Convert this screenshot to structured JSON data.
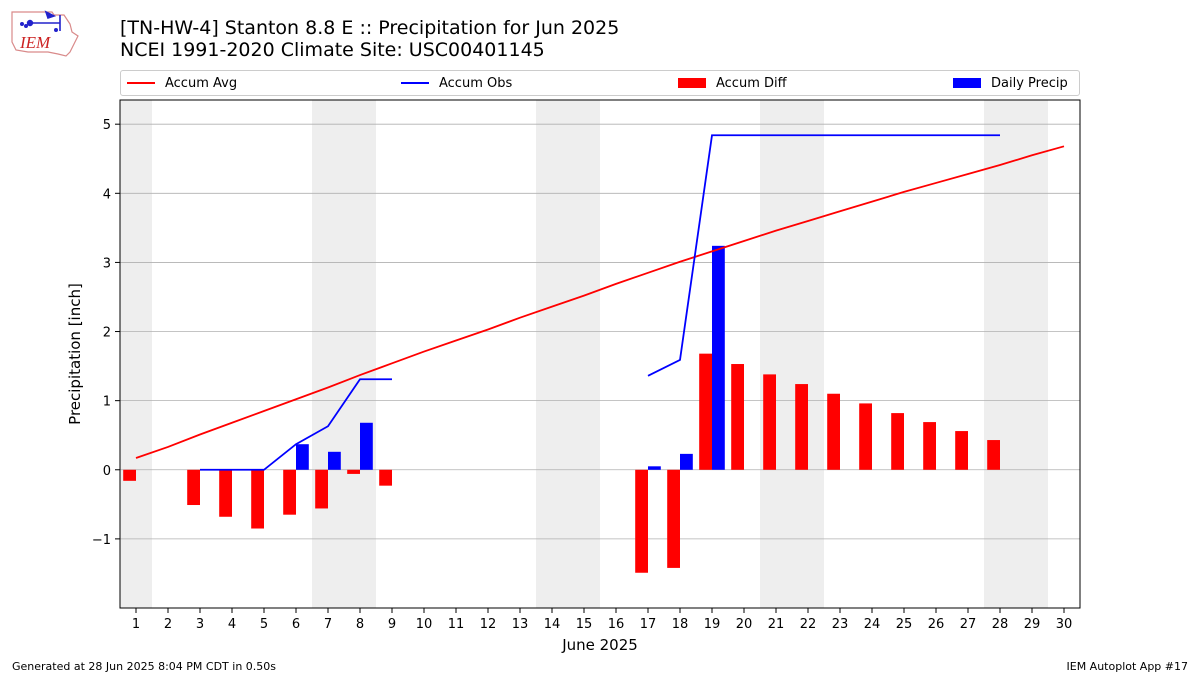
{
  "header": {
    "title_line1": "[TN-HW-4] Stanton 8.8 E :: Precipitation for Jun 2025",
    "title_line2": "NCEI 1991-2020 Climate Site: USC00401145",
    "logo_text": "IEM"
  },
  "footer": {
    "generated": "Generated at 28 Jun 2025 8:04 PM CDT in 0.50s",
    "app": "IEM Autoplot App #17"
  },
  "colors": {
    "avg": "#ff0000",
    "obs": "#0000ff",
    "diff": "#ff0000",
    "daily": "#0000ff",
    "weekend": "#eeeeee",
    "grid": "#b0b0b0"
  },
  "chart_data": {
    "type": "bar",
    "xlabel": "June 2025",
    "ylabel": "Precipitation [inch]",
    "xlim": [
      0.5,
      30.5
    ],
    "ylim": [
      -2.0,
      5.35
    ],
    "yticks": [
      -1,
      0,
      1,
      2,
      3,
      4,
      5
    ],
    "ytick_labels": [
      "−1",
      "0",
      "1",
      "2",
      "3",
      "4",
      "5"
    ],
    "grid": true,
    "legend_position": "top",
    "weekend_days": [
      1,
      7,
      8,
      14,
      15,
      21,
      22,
      28,
      29
    ],
    "days": [
      1,
      2,
      3,
      4,
      5,
      6,
      7,
      8,
      9,
      10,
      11,
      12,
      13,
      14,
      15,
      16,
      17,
      18,
      19,
      20,
      21,
      22,
      23,
      24,
      25,
      26,
      27,
      28,
      29,
      30
    ],
    "series": [
      {
        "name": "Accum Avg",
        "type": "line",
        "x": [
          1,
          2,
          3,
          4,
          5,
          6,
          7,
          8,
          9,
          10,
          11,
          12,
          13,
          14,
          15,
          16,
          17,
          18,
          19,
          20,
          21,
          22,
          23,
          24,
          25,
          26,
          27,
          28,
          29,
          30
        ],
        "values": [
          0.17,
          0.33,
          0.51,
          0.68,
          0.85,
          1.02,
          1.19,
          1.37,
          1.54,
          1.71,
          1.87,
          2.03,
          2.2,
          2.36,
          2.52,
          2.69,
          2.85,
          3.01,
          3.16,
          3.31,
          3.46,
          3.6,
          3.74,
          3.88,
          4.02,
          4.15,
          4.28,
          4.41,
          4.55,
          4.68
        ]
      },
      {
        "name": "Accum Obs",
        "type": "line",
        "segments": [
          {
            "x": [
              3,
              4,
              5,
              6,
              7,
              8,
              9
            ],
            "values": [
              0.0,
              0.0,
              0.0,
              0.37,
              0.63,
              1.31,
              1.31
            ]
          },
          {
            "x": [
              17,
              18,
              19,
              20,
              21,
              22,
              23,
              24,
              25,
              26,
              27,
              28
            ],
            "values": [
              1.36,
              1.59,
              4.84,
              4.84,
              4.84,
              4.84,
              4.84,
              4.84,
              4.84,
              4.84,
              4.84,
              4.84
            ]
          }
        ]
      },
      {
        "name": "Accum Diff",
        "type": "bar",
        "x": [
          1,
          3,
          4,
          5,
          6,
          7,
          8,
          9,
          17,
          18,
          19,
          20,
          21,
          22,
          23,
          24,
          25,
          26,
          27,
          28
        ],
        "values": [
          -0.16,
          -0.51,
          -0.68,
          -0.85,
          -0.65,
          -0.56,
          -0.06,
          -0.23,
          -1.49,
          -1.42,
          1.68,
          1.53,
          1.38,
          1.24,
          1.1,
          0.96,
          0.82,
          0.69,
          0.56,
          0.43
        ]
      },
      {
        "name": "Daily Precip",
        "type": "bar",
        "x": [
          6,
          7,
          8,
          17,
          18,
          19
        ],
        "values": [
          0.37,
          0.26,
          0.68,
          0.05,
          0.23,
          3.24
        ]
      }
    ]
  }
}
